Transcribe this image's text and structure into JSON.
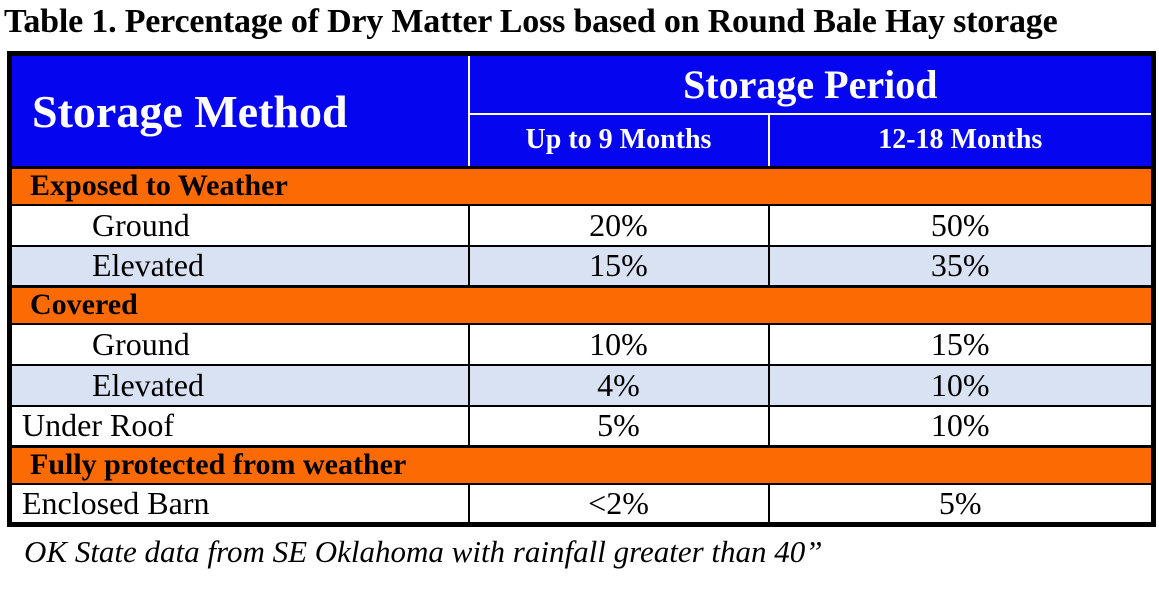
{
  "title": "Table 1. Percentage of Dry Matter Loss based on Round Bale Hay storage",
  "footnote": "OK State data from SE Oklahoma with rainfall greater than 40”",
  "colors": {
    "header_blue": "#0505F0",
    "header_text": "#FFFFFF",
    "section_orange": "#FC6A03",
    "alt_row_blue": "#D9E2F3",
    "border_black": "#000000",
    "body_text": "#000000"
  },
  "table": {
    "header": {
      "method": "Storage Method",
      "period": "Storage Period",
      "sub_columns": [
        "Up to 9 Months",
        "12-18 Months"
      ]
    },
    "rows": [
      {
        "type": "section",
        "label": "Exposed to Weather"
      },
      {
        "type": "data",
        "label": "Ground",
        "indent": true,
        "alt": false,
        "values": [
          "20%",
          "50%"
        ]
      },
      {
        "type": "data",
        "label": "Elevated",
        "indent": true,
        "alt": true,
        "values": [
          "15%",
          "35%"
        ]
      },
      {
        "type": "section",
        "label": "Covered"
      },
      {
        "type": "data",
        "label": "Ground",
        "indent": true,
        "alt": false,
        "values": [
          "10%",
          "15%"
        ]
      },
      {
        "type": "data",
        "label": "Elevated",
        "indent": true,
        "alt": true,
        "values": [
          "4%",
          "10%"
        ]
      },
      {
        "type": "data",
        "label": "Under Roof",
        "indent": false,
        "alt": false,
        "values": [
          "5%",
          "10%"
        ]
      },
      {
        "type": "section",
        "label": "Fully protected from weather"
      },
      {
        "type": "data",
        "label": "Enclosed Barn",
        "indent": false,
        "alt": false,
        "values": [
          "<2%",
          "5%"
        ]
      }
    ]
  }
}
